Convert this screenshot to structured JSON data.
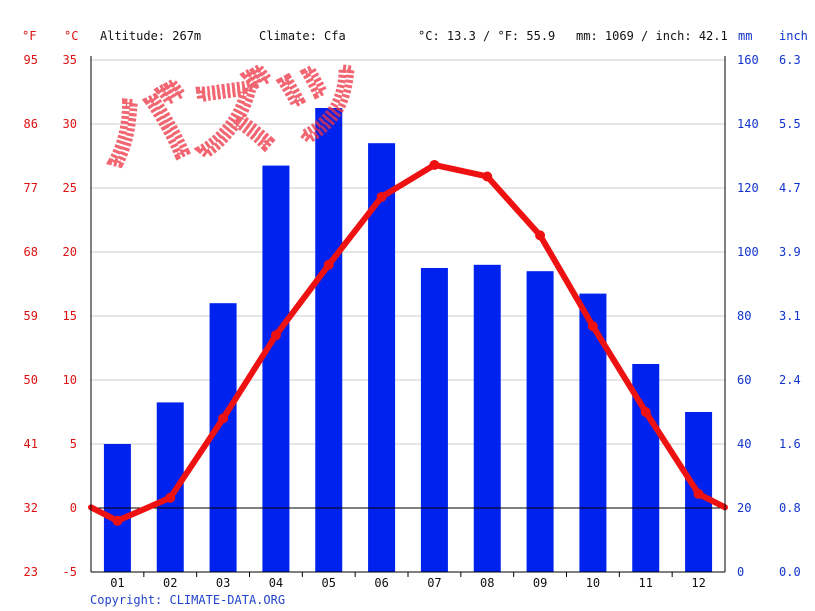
{
  "header": {
    "unit_f": "°F",
    "unit_c": "°C",
    "altitude": "Altitude: 267m",
    "climate": "Climate: Cfa",
    "temp_avg": "°C: 13.3 / °F: 55.9",
    "precip_total": "mm: 1069 / inch: 42.1",
    "unit_mm": "mm",
    "unit_inch": "inch"
  },
  "watermark": "バズツ",
  "copyright": "Copyright: CLIMATE-DATA.ORG",
  "colors": {
    "temperature": "#ee1111",
    "precipitation": "#0022ee",
    "axis_left": "#dd1111",
    "axis_right": "#1133cc",
    "grid": "#cccccc",
    "copyright": "#2244cc"
  },
  "chart_data": {
    "type": "bar+line",
    "categories": [
      "01",
      "02",
      "03",
      "04",
      "05",
      "06",
      "07",
      "08",
      "09",
      "10",
      "11",
      "12"
    ],
    "series": [
      {
        "type": "bar",
        "axis": "right",
        "values": [
          40,
          53,
          84,
          127,
          145,
          134,
          95,
          96,
          94,
          87,
          65,
          50
        ]
      },
      {
        "type": "line",
        "axis": "left",
        "values": [
          -1.0,
          0.8,
          7.0,
          13.5,
          19.0,
          24.3,
          26.8,
          25.9,
          21.3,
          14.2,
          7.5,
          1.1
        ]
      }
    ],
    "y_left": {
      "unit": "°C",
      "range": [
        -5,
        35
      ],
      "ticks": [
        -5,
        0,
        5,
        10,
        15,
        20,
        25,
        30,
        35
      ]
    },
    "y_left_f": {
      "unit": "°F",
      "ticks": [
        23,
        32,
        41,
        50,
        59,
        68,
        77,
        86,
        95
      ]
    },
    "y_right": {
      "unit": "mm",
      "range": [
        0,
        160
      ],
      "ticks": [
        0,
        20,
        40,
        60,
        80,
        100,
        120,
        140,
        160
      ]
    },
    "y_right_inch": {
      "unit": "inch",
      "ticks": [
        "0.0",
        "0.8",
        "1.6",
        "2.4",
        "3.1",
        "3.9",
        "4.7",
        "5.5",
        "6.3"
      ]
    },
    "grid": true
  }
}
